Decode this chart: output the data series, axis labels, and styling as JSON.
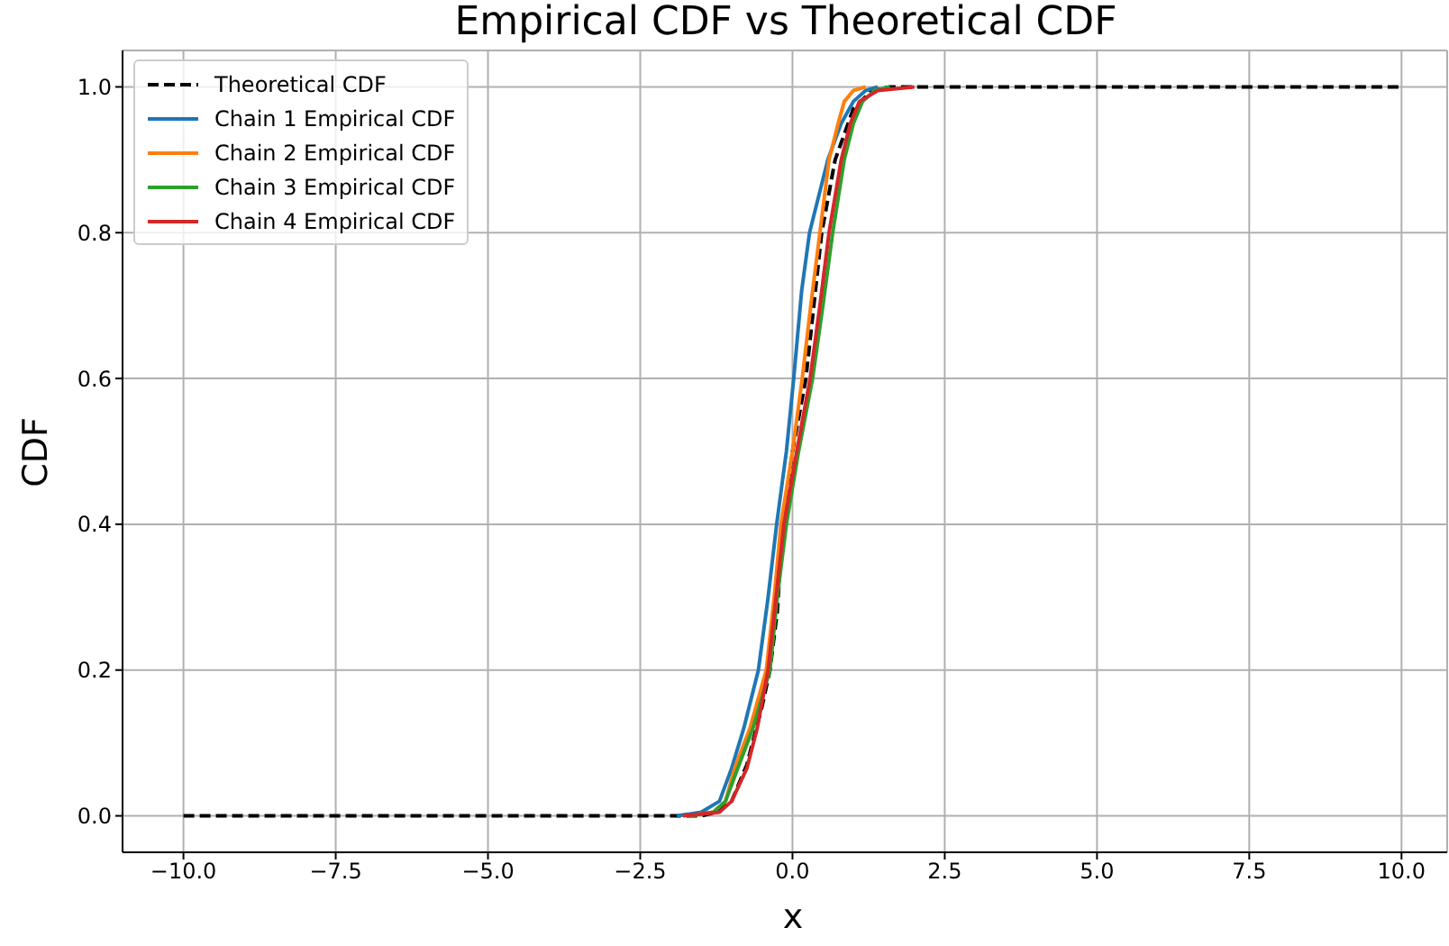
{
  "chart_data": {
    "type": "line",
    "title": "Empirical CDF vs Theoretical CDF",
    "xlabel": "x",
    "ylabel": "CDF",
    "xlim": [
      -11,
      10.75
    ],
    "xticks": [
      {
        "value": -10,
        "label": "−10.0"
      },
      {
        "value": -7.5,
        "label": "−7.5"
      },
      {
        "value": -5,
        "label": "−5.0"
      },
      {
        "value": -2.5,
        "label": "−2.5"
      },
      {
        "value": 0,
        "label": "0.0"
      },
      {
        "value": 2.5,
        "label": "2.5"
      },
      {
        "value": 5,
        "label": "5.0"
      },
      {
        "value": 7.5,
        "label": "7.5"
      },
      {
        "value": 10,
        "label": "10.0"
      }
    ],
    "ylim": [
      -0.05,
      1.05
    ],
    "yticks": [
      {
        "value": 0,
        "label": "0.0"
      },
      {
        "value": 0.2,
        "label": "0.2"
      },
      {
        "value": 0.4,
        "label": "0.4"
      },
      {
        "value": 0.6,
        "label": "0.6"
      },
      {
        "value": 0.8,
        "label": "0.8"
      },
      {
        "value": 1,
        "label": "1.0"
      }
    ],
    "grid": true,
    "legend": "top left",
    "marker": "none",
    "series": [
      {
        "name": "Theoretical CDF",
        "color": "#000000",
        "line_style": "dashed",
        "x": [
          -10,
          -1.5,
          -1.25,
          -1,
          -0.75,
          -0.5,
          -0.37,
          -0.25,
          -0.16,
          0,
          0.22,
          0.35,
          0.48,
          0.7,
          1,
          1.3,
          1.6,
          10
        ],
        "values": [
          0,
          0,
          0.005,
          0.02,
          0.07,
          0.15,
          0.2,
          0.28,
          0.4,
          0.5,
          0.6,
          0.7,
          0.8,
          0.9,
          0.97,
          0.995,
          1,
          1
        ]
      },
      {
        "name": "Chain 1 Empirical CDF",
        "color": "#1f77b4",
        "x": [
          -1.9,
          -1.5,
          -1.2,
          -1,
          -0.8,
          -0.56,
          -0.4,
          -0.26,
          -0.1,
          0.02,
          0.15,
          0.28,
          0.58,
          0.8,
          1,
          1.2,
          1.4
        ],
        "values": [
          0,
          0.005,
          0.02,
          0.065,
          0.12,
          0.2,
          0.3,
          0.4,
          0.5,
          0.6,
          0.72,
          0.8,
          0.9,
          0.95,
          0.98,
          0.995,
          1
        ]
      },
      {
        "name": "Chain 2 Empirical CDF",
        "color": "#ff7f0e",
        "x": [
          -1.7,
          -1.3,
          -1.1,
          -0.95,
          -0.7,
          -0.43,
          -0.3,
          -0.19,
          0,
          0.16,
          0.3,
          0.45,
          0.6,
          0.75,
          0.85,
          1,
          1.2
        ],
        "values": [
          0,
          0.005,
          0.02,
          0.065,
          0.12,
          0.2,
          0.3,
          0.4,
          0.5,
          0.6,
          0.7,
          0.8,
          0.9,
          0.95,
          0.98,
          0.995,
          1
        ]
      },
      {
        "name": "Chain 3 Empirical CDF",
        "color": "#2ca02c",
        "x": [
          -1.7,
          -1.3,
          -1.1,
          -0.9,
          -0.65,
          -0.37,
          -0.25,
          -0.1,
          0.1,
          0.33,
          0.5,
          0.66,
          0.85,
          1,
          1.15,
          1.35,
          1.6
        ],
        "values": [
          0,
          0.005,
          0.02,
          0.065,
          0.12,
          0.2,
          0.3,
          0.4,
          0.5,
          0.6,
          0.7,
          0.8,
          0.9,
          0.95,
          0.98,
          0.995,
          1
        ]
      },
      {
        "name": "Chain 4 Empirical CDF",
        "color": "#d62728",
        "x": [
          -1.8,
          -1.2,
          -1,
          -0.75,
          -0.58,
          -0.4,
          -0.27,
          -0.14,
          0.07,
          0.29,
          0.45,
          0.6,
          0.8,
          0.95,
          1.1,
          1.4,
          2
        ],
        "values": [
          0,
          0.005,
          0.02,
          0.065,
          0.12,
          0.2,
          0.3,
          0.4,
          0.5,
          0.6,
          0.7,
          0.8,
          0.9,
          0.95,
          0.98,
          0.995,
          1
        ]
      }
    ]
  }
}
